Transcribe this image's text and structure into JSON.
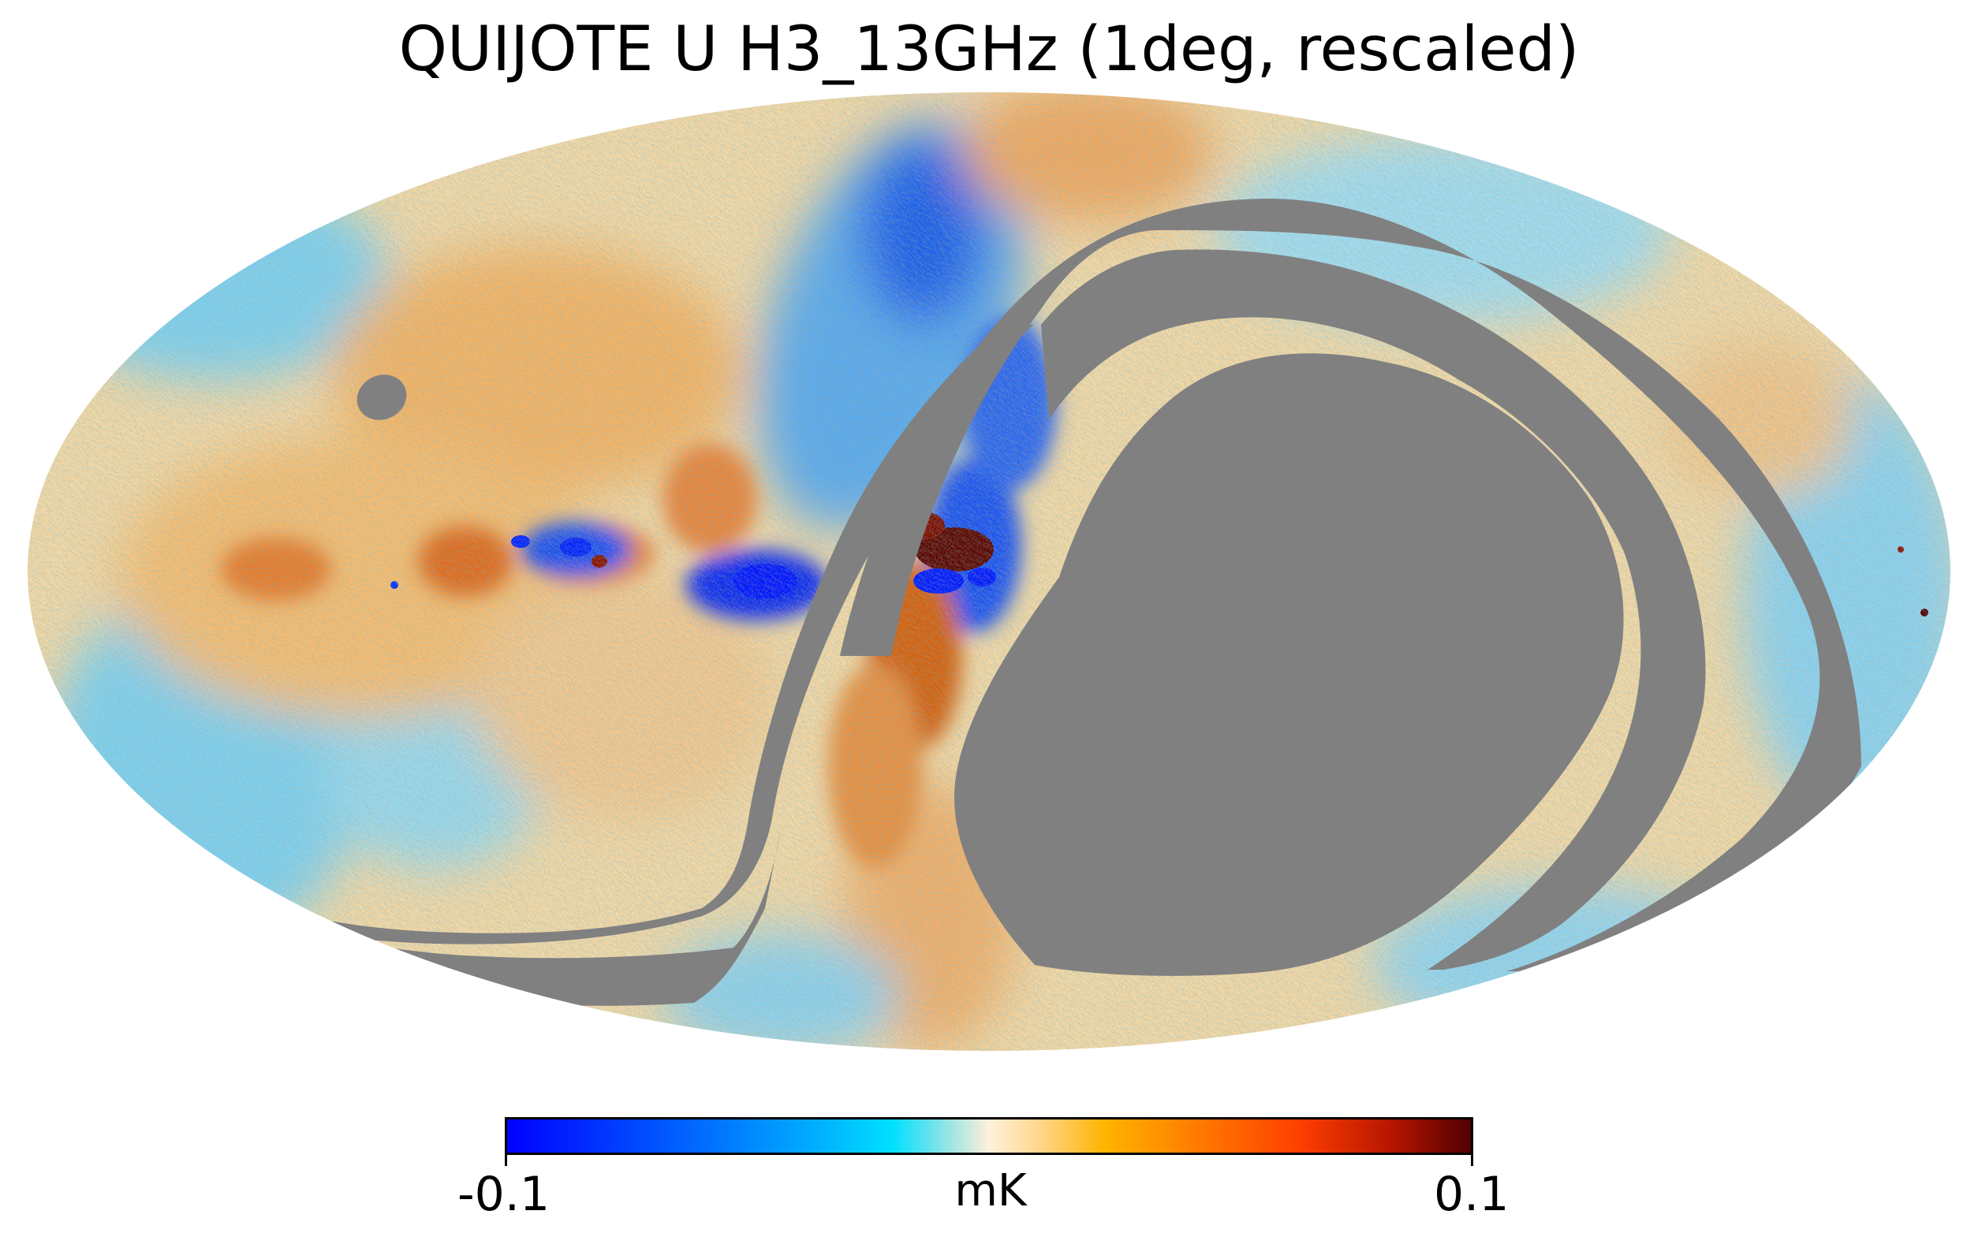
{
  "title": "QUIJOTE U H3_13GHz (1deg, rescaled)",
  "projection": "mollweide",
  "colormap": {
    "name": "planck-like diverging",
    "min_label": "-0.1",
    "max_label": "0.1",
    "unit": "mK",
    "masked_color": "#808080",
    "stops": [
      "#0000ff",
      "#00b4ff",
      "#fff0dc",
      "#ffb400",
      "#ff4000",
      "#500000"
    ]
  }
}
